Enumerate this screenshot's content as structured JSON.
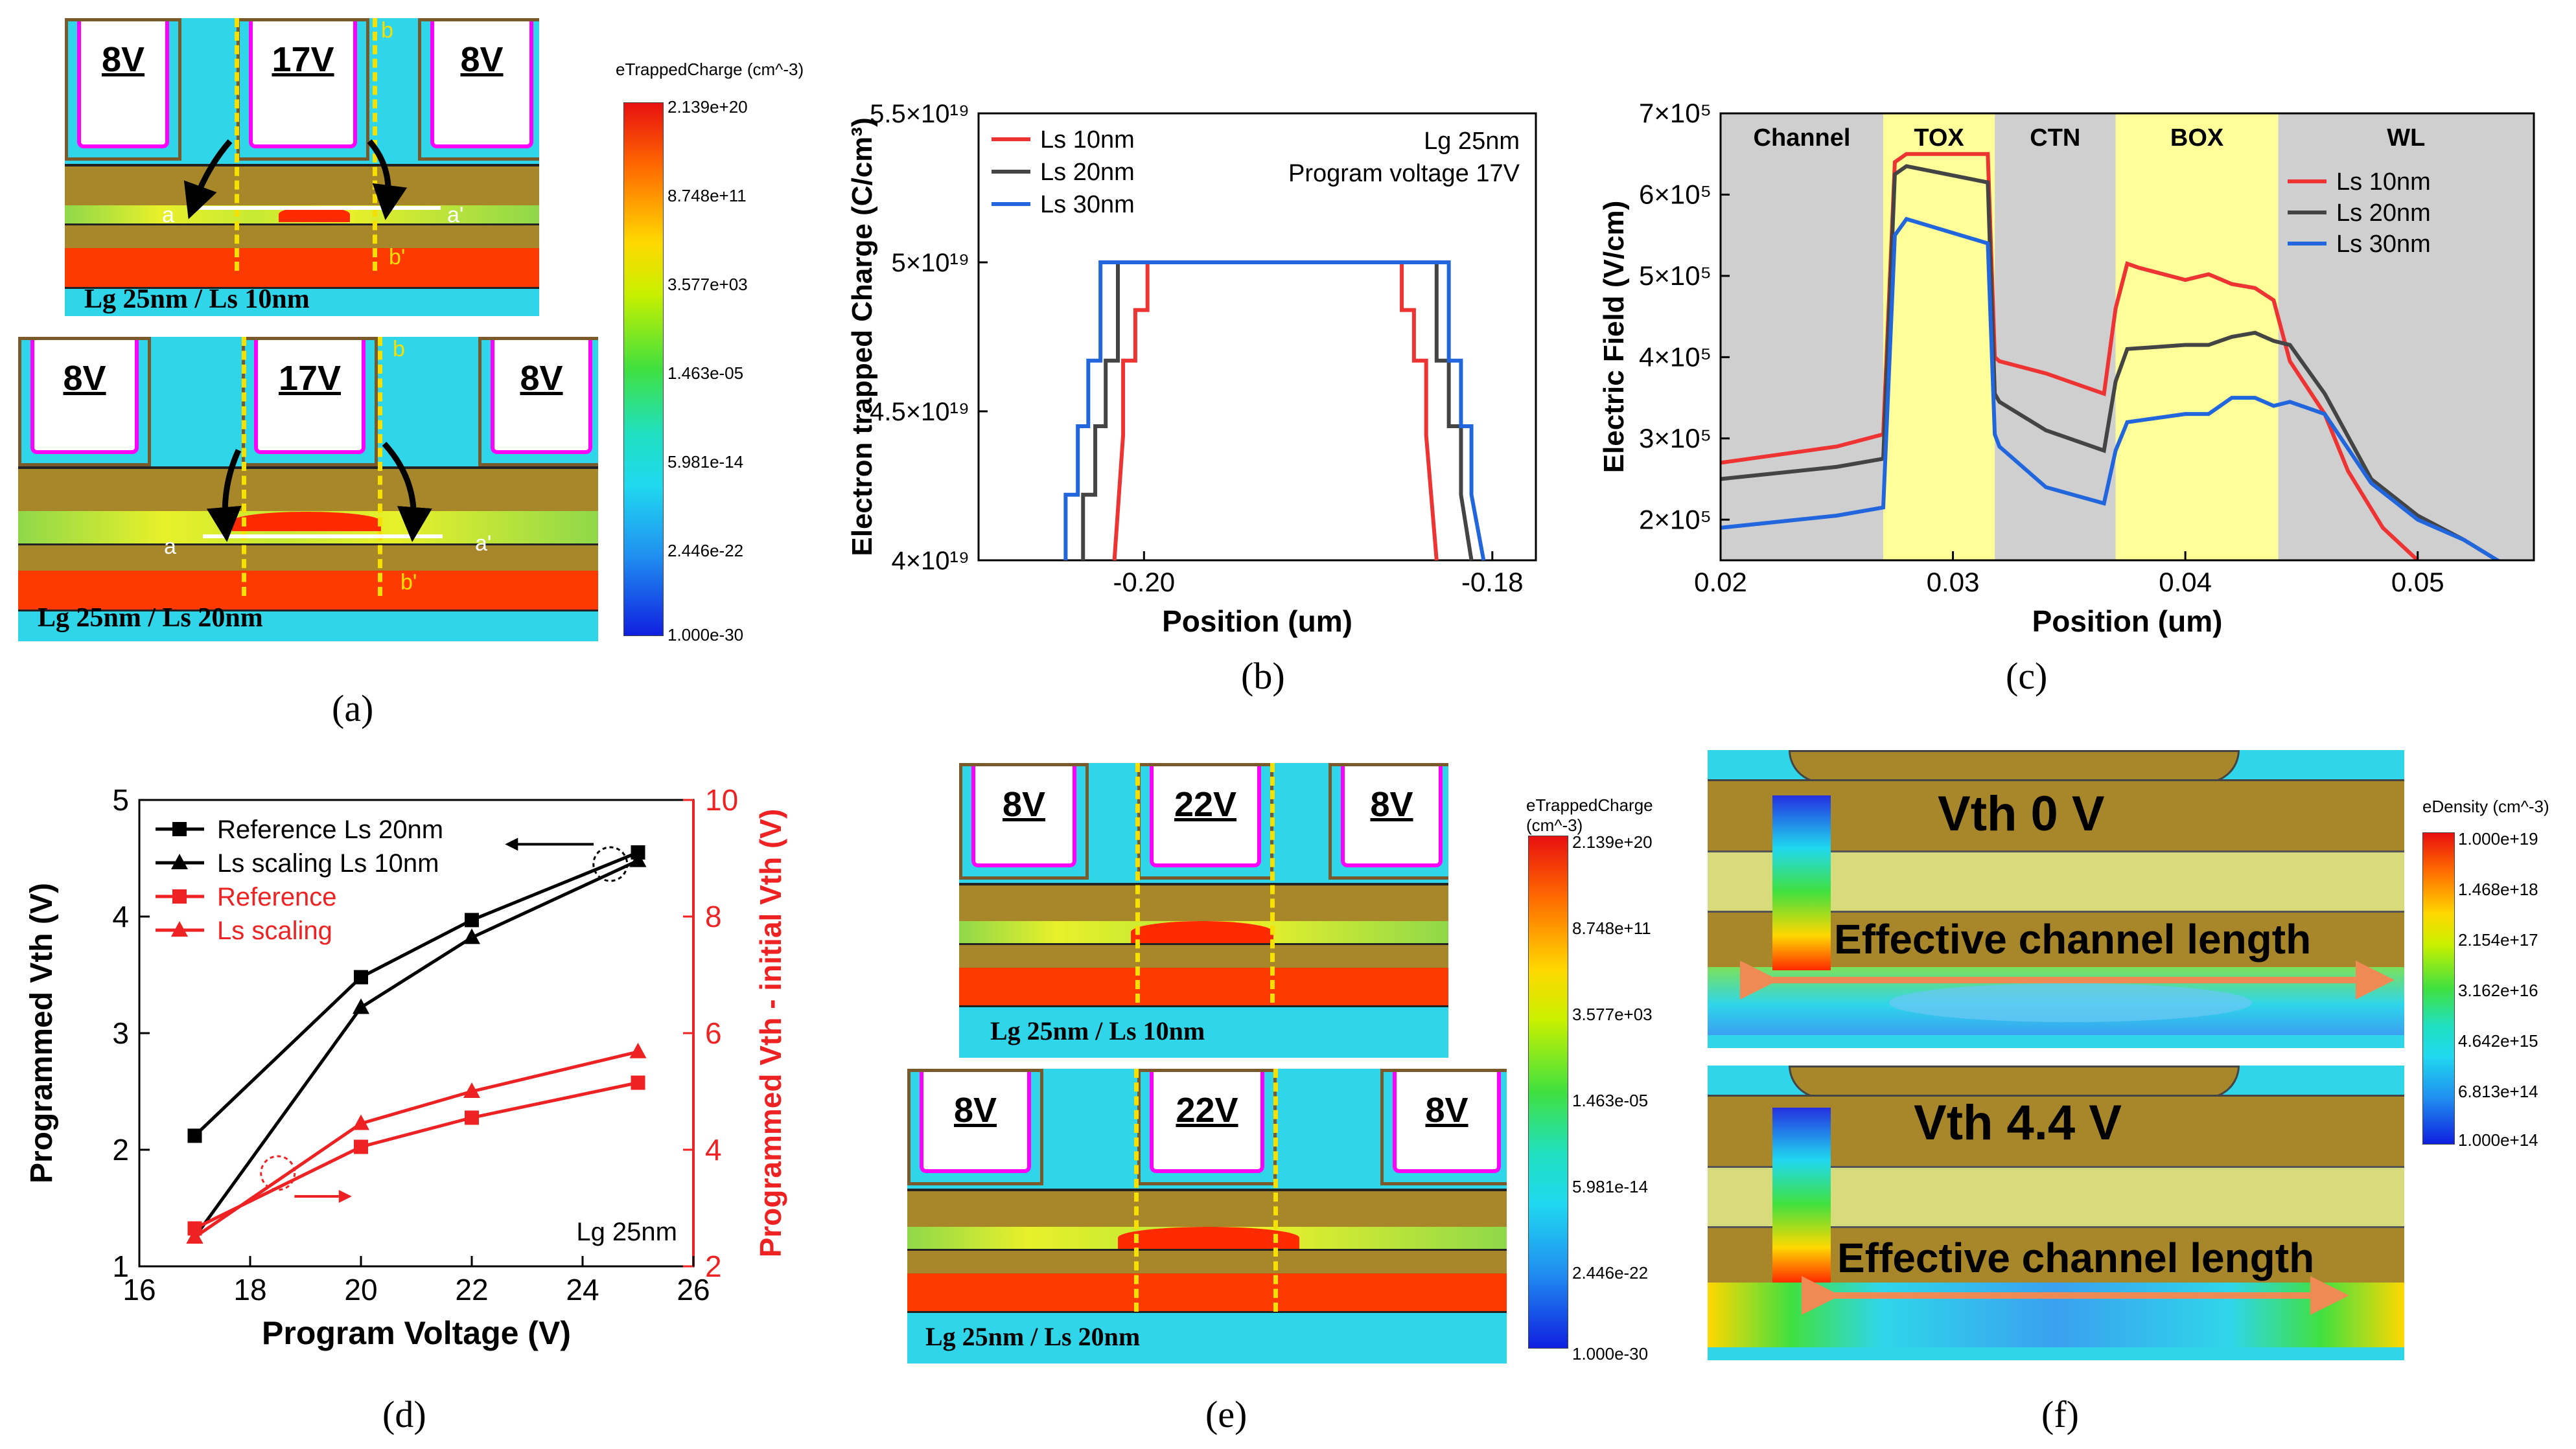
{
  "captions": {
    "a": "(a)",
    "b": "(b)",
    "c": "(c)",
    "d": "(d)",
    "e": "(e)",
    "f": "(f)"
  },
  "panel_a": {
    "top": {
      "gates": [
        "8V",
        "17V",
        "8V"
      ],
      "label": "Lg 25nm / Ls 10nm",
      "marks": {
        "a": "a",
        "a2": "a'",
        "b": "b",
        "b2": "b'"
      }
    },
    "bottom": {
      "gates": [
        "8V",
        "17V",
        "8V"
      ],
      "label": "Lg 25nm / Ls 20nm",
      "marks": {
        "a": "a",
        "a2": "a'",
        "b": "b",
        "b2": "b'"
      }
    },
    "colorbar": {
      "title": "eTrappedCharge (cm^-3)",
      "ticks": [
        "2.139e+20",
        "8.748e+11",
        "3.577e+03",
        "1.463e-05",
        "5.981e-14",
        "2.446e-22",
        "1.000e-30"
      ]
    }
  },
  "panel_e": {
    "top": {
      "gates": [
        "8V",
        "22V",
        "8V"
      ],
      "label": "Lg 25nm / Ls 10nm"
    },
    "bottom": {
      "gates": [
        "8V",
        "22V",
        "8V"
      ],
      "label": "Lg 25nm / Ls 20nm"
    },
    "colorbar": {
      "title": "eTrappedCharge (cm^-3)",
      "ticks": [
        "2.139e+20",
        "8.748e+11",
        "3.577e+03",
        "1.463e-05",
        "5.981e-14",
        "2.446e-22",
        "1.000e-30"
      ]
    }
  },
  "panel_f": {
    "top": {
      "vth": "Vth 0 V",
      "channel": "Effective channel length"
    },
    "bottom": {
      "vth": "Vth 4.4 V",
      "channel": "Effective channel length"
    },
    "colorbar": {
      "title": "eDensity (cm^-3)",
      "ticks": [
        "1.000e+19",
        "1.468e+18",
        "2.154e+17",
        "3.162e+16",
        "4.642e+15",
        "6.813e+14",
        "1.000e+14"
      ]
    }
  },
  "chart_data": [
    {
      "id": "b",
      "type": "line",
      "title": "",
      "xlabel": "Position (um)",
      "ylabel": "Electron trapped Charge (C/cm³)",
      "xlim": [
        -0.2095,
        -0.1775
      ],
      "ylim": [
        4e+19,
        5.5e+19
      ],
      "xticks": [
        -0.2,
        -0.18
      ],
      "xtick_labels": [
        "-0.20",
        "-0.18"
      ],
      "yticks": [
        4e+19,
        4.5e+19,
        5e+19,
        5.5e+19
      ],
      "ytick_labels": [
        "4×10¹⁹",
        "4.5×10¹⁹",
        "5×10¹⁹",
        "5.5×10¹⁹"
      ],
      "annotations": [
        "Lg 25nm",
        "Program voltage 17V"
      ],
      "legend_position": "top-left",
      "series": [
        {
          "name": "Ls 10nm",
          "color": "#ee3333",
          "x": [
            -0.2017,
            -0.2012,
            -0.2012,
            -0.2005,
            -0.2005,
            -0.1998,
            -0.1998,
            -0.1852,
            -0.1852,
            -0.1845,
            -0.1845,
            -0.1838,
            -0.1838,
            -0.1832
          ],
          "y": [
            4e+19,
            4.42e+19,
            4.67e+19,
            4.67e+19,
            4.84e+19,
            4.84e+19,
            5e+19,
            5e+19,
            4.84e+19,
            4.84e+19,
            4.67e+19,
            4.67e+19,
            4.42e+19,
            4e+19
          ]
        },
        {
          "name": "Ls 20nm",
          "color": "#444444",
          "x": [
            -0.2035,
            -0.2035,
            -0.2028,
            -0.2028,
            -0.2022,
            -0.2022,
            -0.2015,
            -0.2015,
            -0.1832,
            -0.1832,
            -0.1825,
            -0.1825,
            -0.1818,
            -0.1818,
            -0.1812
          ],
          "y": [
            4e+19,
            4.22e+19,
            4.22e+19,
            4.45e+19,
            4.45e+19,
            4.67e+19,
            4.67e+19,
            5e+19,
            5e+19,
            4.67e+19,
            4.67e+19,
            4.45e+19,
            4.45e+19,
            4.22e+19,
            4e+19
          ]
        },
        {
          "name": "Ls 30nm",
          "color": "#2266dd",
          "x": [
            -0.2045,
            -0.2045,
            -0.2038,
            -0.2038,
            -0.2032,
            -0.2032,
            -0.2025,
            -0.2025,
            -0.1825,
            -0.1825,
            -0.1818,
            -0.1818,
            -0.1812,
            -0.1812,
            -0.1805
          ],
          "y": [
            4e+19,
            4.22e+19,
            4.22e+19,
            4.45e+19,
            4.45e+19,
            4.67e+19,
            4.67e+19,
            5e+19,
            5e+19,
            4.67e+19,
            4.67e+19,
            4.45e+19,
            4.45e+19,
            4.22e+19,
            4e+19
          ]
        }
      ]
    },
    {
      "id": "c",
      "type": "line",
      "xlabel": "Position (um)",
      "ylabel": "Electric Field (V/cm)",
      "xlim": [
        0.02,
        0.055
      ],
      "ylim": [
        150000.0,
        700000.0
      ],
      "xticks": [
        0.02,
        0.03,
        0.04,
        0.05
      ],
      "xtick_labels": [
        "0.02",
        "0.03",
        "0.04",
        "0.05"
      ],
      "yticks": [
        200000.0,
        300000.0,
        400000.0,
        500000.0,
        600000.0,
        700000.0
      ],
      "ytick_labels": [
        "2×10⁵",
        "3×10⁵",
        "4×10⁵",
        "5×10⁵",
        "6×10⁵",
        "7×10⁵"
      ],
      "regions": [
        {
          "name": "Channel",
          "from": 0.02,
          "to": 0.027,
          "color": "#cfcfcf"
        },
        {
          "name": "TOX",
          "from": 0.027,
          "to": 0.0318,
          "color": "#ffff99"
        },
        {
          "name": "CTN",
          "from": 0.0318,
          "to": 0.037,
          "color": "#cfcfcf"
        },
        {
          "name": "BOX",
          "from": 0.037,
          "to": 0.044,
          "color": "#ffff99"
        },
        {
          "name": "WL",
          "from": 0.044,
          "to": 0.055,
          "color": "#cfcfcf"
        }
      ],
      "legend_position": "top-right",
      "series": [
        {
          "name": "Ls 10nm",
          "color": "#ee3333",
          "x": [
            0.02,
            0.025,
            0.027,
            0.0275,
            0.028,
            0.0315,
            0.0318,
            0.032,
            0.034,
            0.0365,
            0.037,
            0.0375,
            0.038,
            0.04,
            0.041,
            0.042,
            0.043,
            0.0438,
            0.0445,
            0.046,
            0.047,
            0.0485,
            0.05
          ],
          "y": [
            270000.0,
            290000.0,
            305000.0,
            640000.0,
            650000.0,
            650000.0,
            400000.0,
            395000.0,
            380000.0,
            355000.0,
            460000.0,
            515000.0,
            510000.0,
            495000.0,
            502000.0,
            490000.0,
            485000.0,
            470000.0,
            395000.0,
            330000.0,
            260000.0,
            190000.0,
            150000.0
          ]
        },
        {
          "name": "Ls 20nm",
          "color": "#444444",
          "x": [
            0.02,
            0.025,
            0.027,
            0.0275,
            0.028,
            0.0315,
            0.0318,
            0.032,
            0.034,
            0.0365,
            0.037,
            0.0375,
            0.04,
            0.041,
            0.042,
            0.043,
            0.0438,
            0.0445,
            0.046,
            0.048,
            0.05,
            0.052,
            0.054
          ],
          "y": [
            250000.0,
            265000.0,
            275000.0,
            625000.0,
            635000.0,
            615000.0,
            355000.0,
            345000.0,
            310000.0,
            285000.0,
            370000.0,
            410000.0,
            415000.0,
            415000.0,
            425000.0,
            430000.0,
            420000.0,
            415000.0,
            355000.0,
            250000.0,
            205000.0,
            175000.0,
            140000.0
          ]
        },
        {
          "name": "Ls 30nm",
          "color": "#2266dd",
          "x": [
            0.02,
            0.025,
            0.027,
            0.0275,
            0.028,
            0.0315,
            0.0318,
            0.032,
            0.034,
            0.0365,
            0.037,
            0.0375,
            0.04,
            0.041,
            0.042,
            0.043,
            0.0438,
            0.0445,
            0.046,
            0.048,
            0.05,
            0.052,
            0.054
          ],
          "y": [
            190000.0,
            205000.0,
            215000.0,
            550000.0,
            570000.0,
            540000.0,
            305000.0,
            290000.0,
            240000.0,
            220000.0,
            285000.0,
            320000.0,
            330000.0,
            330000.0,
            350000.0,
            350000.0,
            340000.0,
            345000.0,
            330000.0,
            245000.0,
            200000.0,
            175000.0,
            140000.0
          ]
        }
      ]
    },
    {
      "id": "d",
      "type": "line",
      "xlabel": "Program Voltage (V)",
      "ylabel": "Programmed Vth (V)",
      "y2label": "Programmed Vth - initial Vth (V)",
      "xlim": [
        16,
        26
      ],
      "ylim": [
        1,
        5
      ],
      "y2lim": [
        2,
        10
      ],
      "xticks": [
        16,
        18,
        20,
        22,
        24,
        26
      ],
      "yticks": [
        1,
        2,
        3,
        4,
        5
      ],
      "y2ticks": [
        2,
        4,
        6,
        8,
        10
      ],
      "annotations": [
        "Lg 25nm"
      ],
      "legend_position": "top-left",
      "x": [
        17,
        20,
        22,
        25
      ],
      "series": [
        {
          "name": "Reference Ls 20nm",
          "color": "#000000",
          "marker": "square",
          "axis": "left",
          "values": [
            2.12,
            3.48,
            3.97,
            4.55
          ]
        },
        {
          "name": "Ls scaling Ls 10nm",
          "color": "#000000",
          "marker": "triangle",
          "axis": "left",
          "values": [
            1.25,
            3.22,
            3.82,
            4.48
          ]
        },
        {
          "name": "Reference",
          "color": "#ee2222",
          "marker": "square",
          "axis": "right",
          "values": [
            2.65,
            4.05,
            4.55,
            5.15
          ]
        },
        {
          "name": "Ls scaling",
          "color": "#ee2222",
          "marker": "triangle",
          "axis": "right",
          "values": [
            2.5,
            4.45,
            5.0,
            5.68
          ]
        }
      ]
    }
  ]
}
